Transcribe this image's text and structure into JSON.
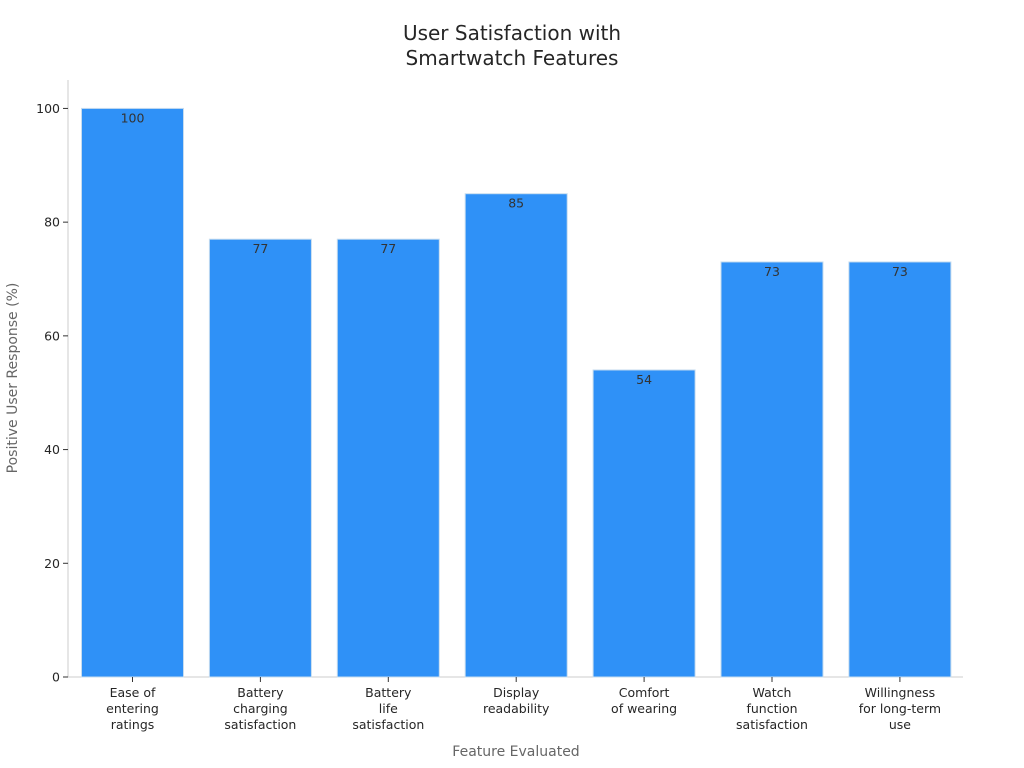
{
  "chart_data": {
    "type": "bar",
    "title": "User Satisfaction with Smartwatch Features",
    "title_lines": [
      "User Satisfaction with",
      "Smartwatch Features"
    ],
    "xlabel": "Feature Evaluated",
    "ylabel": "Positive User Response (%)",
    "categories": [
      "Ease of entering ratings",
      "Battery charging satisfaction",
      "Battery life satisfaction",
      "Display readability",
      "Comfort of wearing",
      "Watch function satisfaction",
      "Willingness for long-term use"
    ],
    "category_lines": [
      [
        "Ease of",
        "entering",
        "ratings"
      ],
      [
        "Battery",
        "charging",
        "satisfaction"
      ],
      [
        "Battery",
        "life",
        "satisfaction"
      ],
      [
        "Display",
        "readability"
      ],
      [
        "Comfort",
        "of wearing"
      ],
      [
        "Watch",
        "function",
        "satisfaction"
      ],
      [
        "Willingness",
        "for long-term",
        "use"
      ]
    ],
    "values": [
      100,
      77,
      77,
      85,
      54,
      73,
      73
    ],
    "data_labels": [
      "100",
      "77",
      "77",
      "85",
      "54",
      "73",
      "73"
    ],
    "ylim": [
      0,
      105
    ],
    "yticks": [
      0,
      20,
      40,
      60,
      80,
      100
    ],
    "ytick_labels": [
      "0",
      "20",
      "40",
      "60",
      "80",
      "100"
    ],
    "grid": false,
    "legend": "none",
    "bar_color": "#2f91f7",
    "bar_edge_color": "#c6dcef"
  }
}
